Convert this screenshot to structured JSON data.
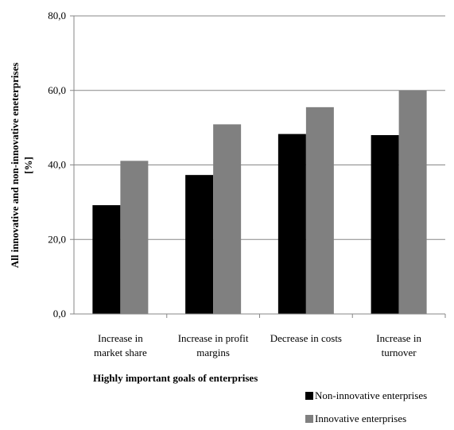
{
  "chart_data": {
    "type": "bar",
    "categories": [
      [
        "Increase in",
        "market share"
      ],
      [
        "Increase in profit",
        "margins"
      ],
      [
        "Decrease in costs"
      ],
      [
        "Increase in",
        "turnover"
      ]
    ],
    "series": [
      {
        "name": "Non-innovative enterprises",
        "color": "#000000",
        "values": [
          29.2,
          37.3,
          48.3,
          48.0
        ]
      },
      {
        "name": "Innovative enterprises",
        "color": "#808080",
        "values": [
          41.1,
          50.9,
          55.5,
          60.0
        ]
      }
    ],
    "ylim": [
      0,
      80
    ],
    "yticks": [
      "0,0",
      "20,0",
      "40,0",
      "60,0",
      "80,0"
    ],
    "xlabel": "Highly important goals of enterprises",
    "ylabel": [
      "All innovative and non-innovative eneterprises",
      "[%]"
    ],
    "grid": true,
    "legend_position": "bottom-right"
  }
}
